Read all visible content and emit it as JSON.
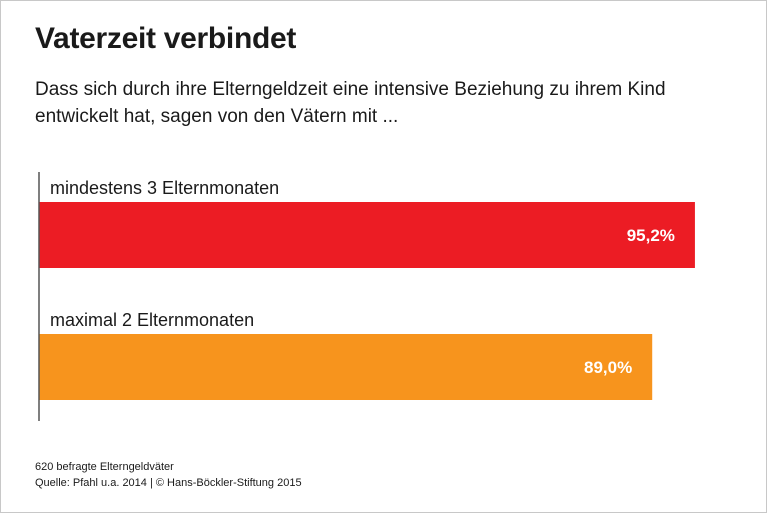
{
  "title": "Vaterzeit verbindet",
  "subtitle": "Dass sich durch ihre Elterngeldzeit eine intensive Beziehung zu ihrem Kind entwickelt hat, sagen von den Vätern mit ...",
  "footnote": "620 befragte Elterngeldväter",
  "source": "Quelle: Pfahl u.a. 2014 | © Hans-Böckler-Stiftung 2015",
  "colors": {
    "series_1": "#ec1c24",
    "series_2": "#f7941d"
  },
  "chart_data": {
    "type": "bar",
    "orientation": "horizontal",
    "categories": [
      "mindestens 3 Elternmonaten",
      "maximal 2 Elternmonaten"
    ],
    "values": [
      95.2,
      89.0
    ],
    "value_labels": [
      "95,2%",
      "89,0%"
    ],
    "unit": "%",
    "xlim": [
      0,
      100
    ],
    "grid": false,
    "legend": "none"
  }
}
